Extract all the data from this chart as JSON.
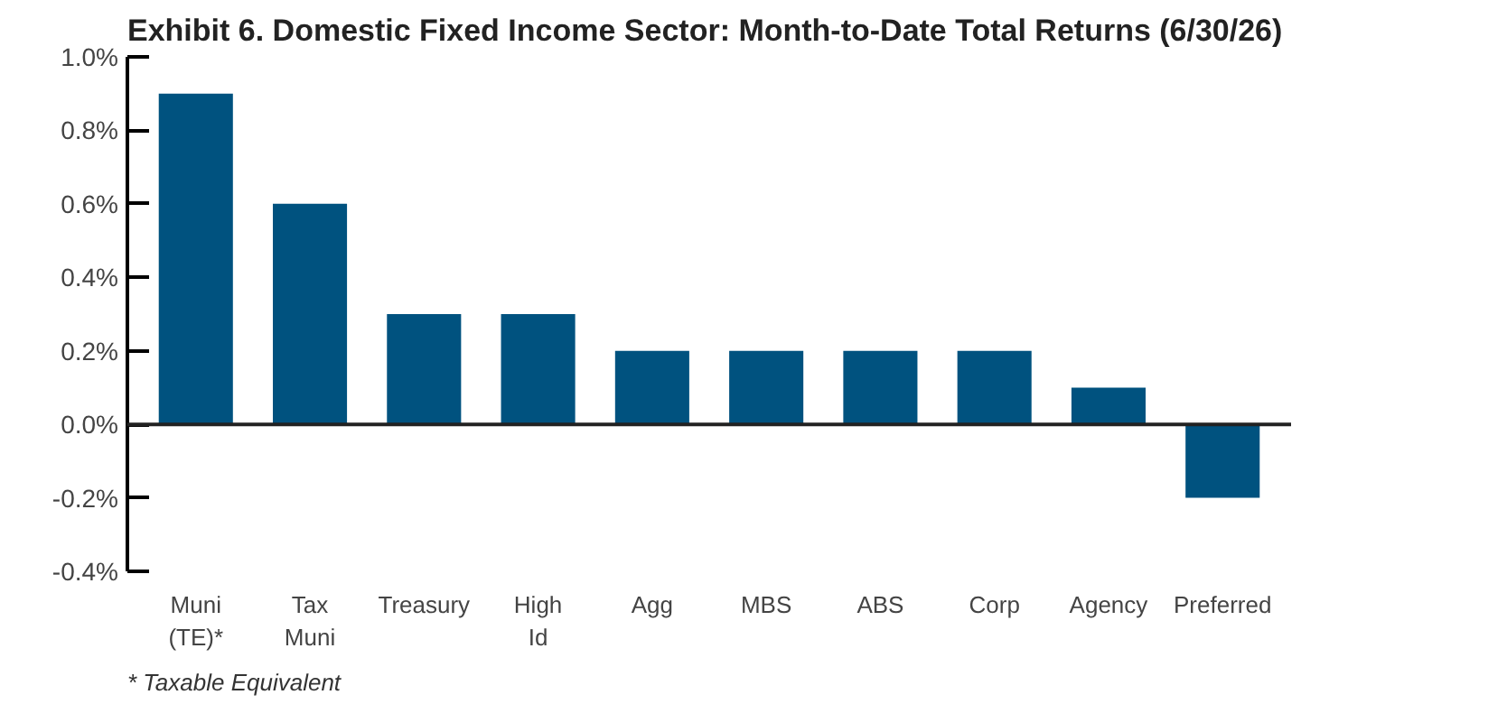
{
  "chart_data": {
    "type": "bar",
    "title": "Exhibit 6. Domestic Fixed Income Sector: Month-to-Date Total Returns (6/30/26)",
    "categories": [
      "Muni\n(TE)*",
      "Tax\nMuni",
      "Treasury",
      "High\nId",
      "Agg",
      "MBS",
      "ABS",
      "Corp",
      "Agency",
      "Preferred"
    ],
    "values": [
      0.9,
      0.6,
      0.3,
      0.3,
      0.2,
      0.2,
      0.2,
      0.2,
      0.1,
      -0.2
    ],
    "color": "#00527f",
    "ylim": [
      -0.4,
      1.0
    ],
    "yticks": [
      {
        "value": -0.4,
        "label": "-0.4%"
      },
      {
        "value": -0.2,
        "label": "-0.2%"
      },
      {
        "value": 0.0,
        "label": "0.0%"
      },
      {
        "value": 0.2,
        "label": "0.2%"
      },
      {
        "value": 0.4,
        "label": "0.4%"
      },
      {
        "value": 0.6,
        "label": "0.6%"
      },
      {
        "value": 0.8,
        "label": "0.8%"
      },
      {
        "value": 1.0,
        "label": "1.0%"
      }
    ],
    "ref_lines": [
      {
        "axis": "y",
        "value": 0,
        "color": "#222222"
      }
    ],
    "grid": false,
    "annotations": [
      "* Taxable Equivalent"
    ]
  }
}
